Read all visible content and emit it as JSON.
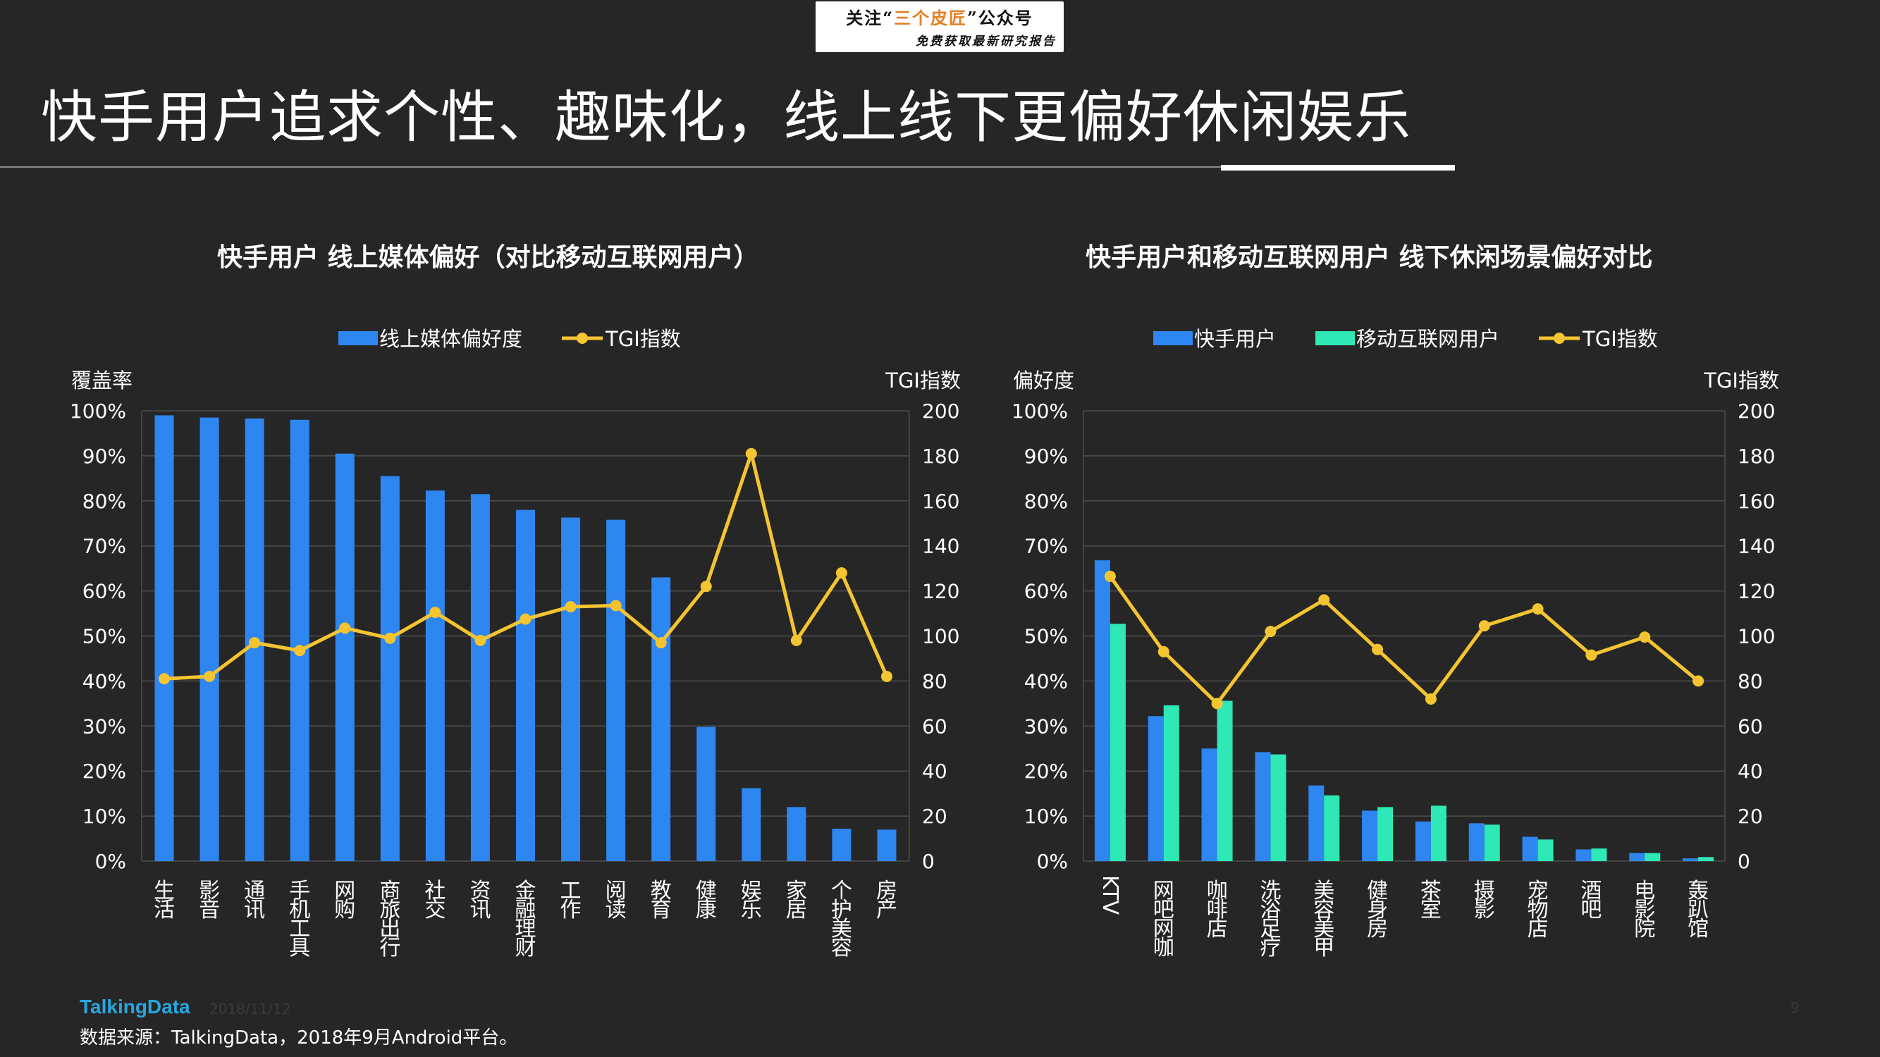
{
  "header_badge": {
    "line1": "关注“三个皮匠”公众号",
    "line2": "免费获取最新研究报告",
    "highlight_color": "#e67e22"
  },
  "page_title": "快手用户追求个性、趣味化，线上线下更偏好休闲娱乐",
  "footer": {
    "logo": "TalkingData",
    "date": "2018/11/12",
    "source": "数据来源：TalkingData，2018年9月Android平台。",
    "page_number": "9"
  },
  "colors": {
    "background": "#262626",
    "bar_blue": "#2e86f0",
    "bar_teal": "#2ee8b6",
    "tgi_line": "#f5c431",
    "grid": "#4d4d4d"
  },
  "chart_data": [
    {
      "type": "bar",
      "title": "快手用户  线上媒体偏好（对比移动互联网用户）",
      "legend_position": "top",
      "ylabel": "覆盖率",
      "y2label": "TGI指数",
      "ylim": [
        0,
        100
      ],
      "y2lim": [
        0,
        200
      ],
      "y_ticks": [
        "0%",
        "10%",
        "20%",
        "30%",
        "40%",
        "50%",
        "60%",
        "70%",
        "80%",
        "90%",
        "100%"
      ],
      "y2_ticks": [
        "0",
        "20",
        "40",
        "60",
        "80",
        "100",
        "120",
        "140",
        "160",
        "180",
        "200"
      ],
      "categories": [
        "生活",
        "影音",
        "通讯",
        "手机工具",
        "网购",
        "商旅出行",
        "社交",
        "资讯",
        "金融理财",
        "工作",
        "阅读",
        "教育",
        "健康",
        "娱乐",
        "家居",
        "个护美容",
        "房产"
      ],
      "series": [
        {
          "name": "线上媒体偏好度",
          "kind": "bar",
          "axis": "left",
          "values": [
            99,
            98.5,
            98.3,
            98,
            90.5,
            85.5,
            82.3,
            81.5,
            78,
            76.3,
            75.8,
            63,
            29.8,
            16.2,
            12,
            7.2,
            7
          ]
        },
        {
          "name": "TGI指数",
          "kind": "line",
          "axis": "right",
          "values": [
            81,
            82,
            97,
            93.5,
            103.5,
            99,
            110.5,
            98,
            107.5,
            113,
            113.5,
            97,
            122,
            181,
            98,
            128,
            82
          ]
        }
      ]
    },
    {
      "type": "bar",
      "title": "快手用户和移动互联网用户  线下休闲场景偏好对比",
      "legend_position": "top",
      "ylabel": "偏好度",
      "y2label": "TGI指数",
      "ylim": [
        0,
        100
      ],
      "y2lim": [
        0,
        200
      ],
      "y_ticks": [
        "0%",
        "10%",
        "20%",
        "30%",
        "40%",
        "50%",
        "60%",
        "70%",
        "80%",
        "90%",
        "100%"
      ],
      "y2_ticks": [
        "0",
        "20",
        "40",
        "60",
        "80",
        "100",
        "120",
        "140",
        "160",
        "180",
        "200"
      ],
      "categories": [
        "KTV",
        "网吧网咖",
        "咖啡店",
        "洗浴足疗",
        "美容美甲",
        "健身房",
        "茶室",
        "摄影",
        "宠物店",
        "酒吧",
        "电影院",
        "轰趴馆"
      ],
      "series": [
        {
          "name": "快手用户",
          "kind": "bar",
          "axis": "left",
          "values": [
            66.8,
            32.2,
            25,
            24.2,
            16.8,
            11.2,
            8.8,
            8.4,
            5.4,
            2.6,
            1.8,
            0.6
          ]
        },
        {
          "name": "移动互联网用户",
          "kind": "bar",
          "axis": "left",
          "values": [
            52.7,
            34.6,
            35.6,
            23.7,
            14.6,
            12,
            12.3,
            8.1,
            4.8,
            2.8,
            1.8,
            0.9
          ]
        },
        {
          "name": "TGI指数",
          "kind": "line",
          "axis": "right",
          "values": [
            126.5,
            93,
            70,
            102,
            116,
            94,
            72,
            104.5,
            112,
            91.5,
            99.5,
            80
          ]
        }
      ]
    }
  ]
}
